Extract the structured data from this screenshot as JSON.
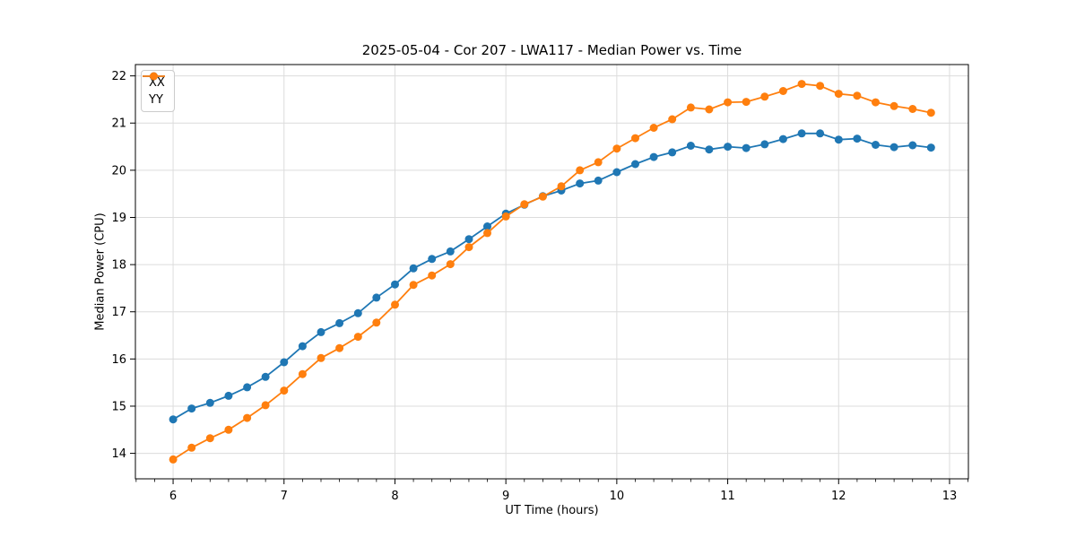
{
  "chart_data": {
    "type": "line",
    "title": "2025-05-04 - Cor 207 - LWA117 - Median Power vs. Time",
    "xlabel": "UT Time (hours)",
    "ylabel": "Median Power (CPU)",
    "grid": true,
    "legend_position": "upper left",
    "marker": "circle",
    "xlim": [
      5.66,
      13.17
    ],
    "ylim": [
      13.46,
      22.24
    ],
    "xticks": [
      6,
      7,
      8,
      9,
      10,
      11,
      12,
      13
    ],
    "yticks": [
      14,
      15,
      16,
      17,
      18,
      19,
      20,
      21,
      22
    ],
    "x_minor_tick_interval_hours": 0.1667,
    "x": [
      6.0,
      6.167,
      6.333,
      6.5,
      6.667,
      6.833,
      7.0,
      7.167,
      7.333,
      7.5,
      7.667,
      7.833,
      8.0,
      8.167,
      8.333,
      8.5,
      8.667,
      8.833,
      9.0,
      9.167,
      9.333,
      9.5,
      9.667,
      9.833,
      10.0,
      10.167,
      10.333,
      10.5,
      10.667,
      10.833,
      11.0,
      11.167,
      11.333,
      11.5,
      11.667,
      11.833,
      12.0,
      12.167,
      12.333,
      12.5,
      12.667,
      12.833
    ],
    "series": [
      {
        "name": "XX",
        "color": "#1f77b4",
        "values": [
          14.72,
          14.95,
          15.07,
          15.22,
          15.4,
          15.62,
          15.93,
          16.27,
          16.57,
          16.76,
          16.97,
          17.3,
          17.58,
          17.92,
          18.12,
          18.28,
          18.54,
          18.81,
          19.08,
          19.27,
          19.45,
          19.57,
          19.72,
          19.78,
          19.96,
          20.13,
          20.28,
          20.38,
          20.52,
          20.44,
          20.5,
          20.47,
          20.55,
          20.66,
          20.78,
          20.78,
          20.65,
          20.67,
          20.54,
          20.49,
          20.53,
          20.48
        ]
      },
      {
        "name": "YY",
        "color": "#ff7f0e",
        "values": [
          13.87,
          14.12,
          14.32,
          14.5,
          14.75,
          15.02,
          15.33,
          15.68,
          16.02,
          16.23,
          16.47,
          16.77,
          17.15,
          17.57,
          17.77,
          18.01,
          18.37,
          18.67,
          19.02,
          19.28,
          19.44,
          19.66,
          20.0,
          20.17,
          20.46,
          20.68,
          20.9,
          21.08,
          21.33,
          21.29,
          21.44,
          21.45,
          21.56,
          21.68,
          21.83,
          21.79,
          21.62,
          21.58,
          21.44,
          21.36,
          21.3,
          21.22
        ]
      }
    ],
    "colors": {
      "grid": "#dcdcdc",
      "spine": "#000000",
      "text": "#000000",
      "background": "#ffffff"
    }
  }
}
